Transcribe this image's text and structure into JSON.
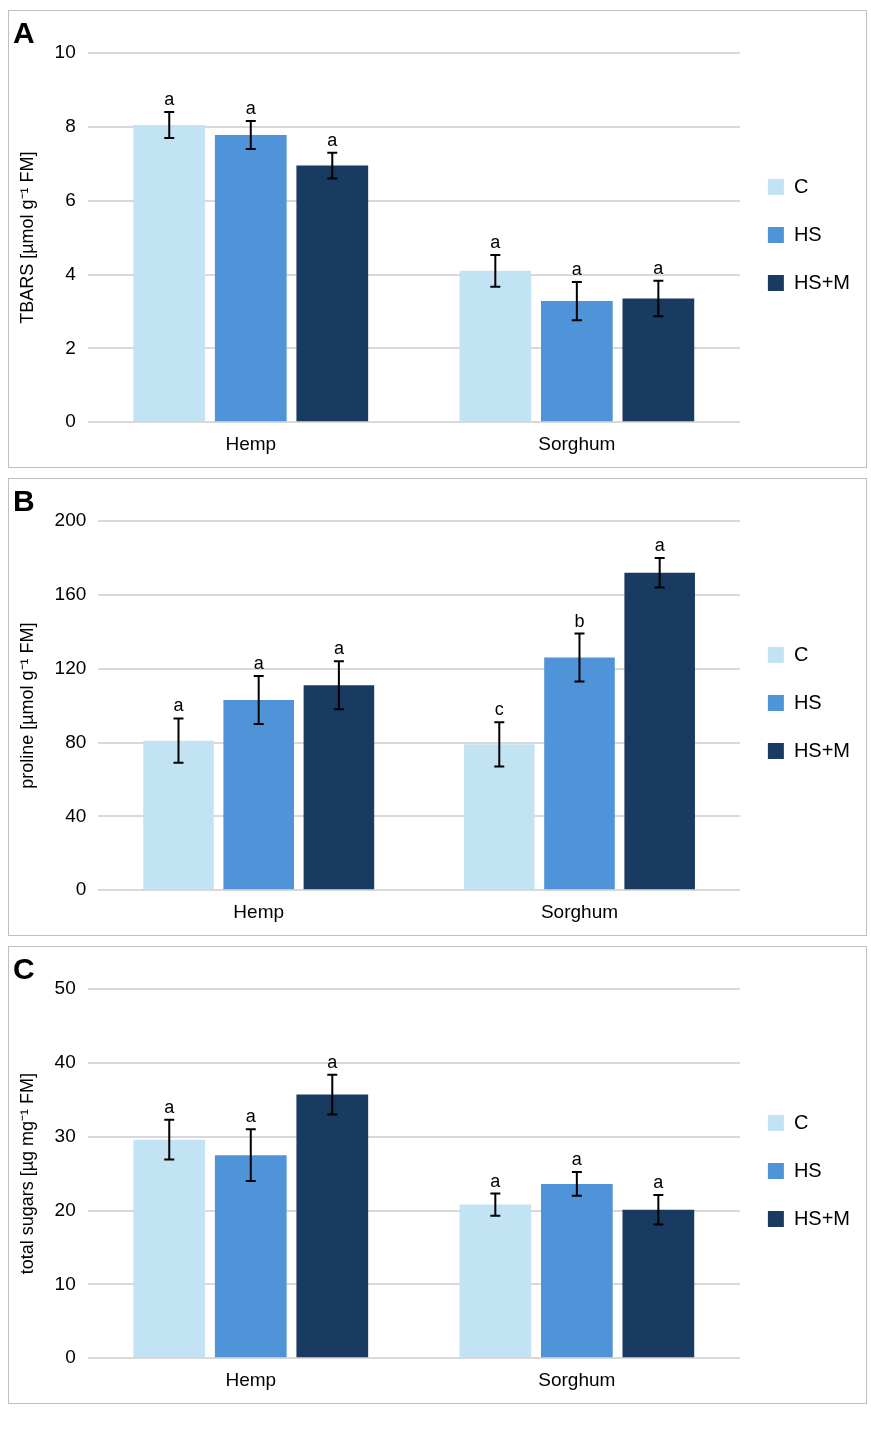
{
  "chart_data": [
    {
      "type": "bar",
      "title": "A",
      "ylabel": "TBARS [µmol g⁻¹ FM]",
      "categories": [
        "Hemp",
        "Sorghum"
      ],
      "ylim": [
        0,
        10
      ],
      "yticks": [
        0,
        2,
        4,
        6,
        8,
        10
      ],
      "grid": "y",
      "legend": "right",
      "series": [
        {
          "name": "C",
          "color": "#c2e3f3",
          "values": [
            8.05,
            4.1
          ],
          "errors": [
            0.35,
            0.43
          ],
          "value_labels": [
            "a",
            "a"
          ]
        },
        {
          "name": "HS",
          "color": "#4f94d8",
          "values": [
            7.78,
            3.28
          ],
          "errors": [
            0.38,
            0.52
          ],
          "value_labels": [
            "a",
            "a"
          ]
        },
        {
          "name": "HS+M",
          "color": "#193b61",
          "values": [
            6.95,
            3.35
          ],
          "errors": [
            0.35,
            0.48
          ],
          "value_labels": [
            "a",
            "a"
          ]
        }
      ]
    },
    {
      "type": "bar",
      "title": "B",
      "ylabel": "proline [µmol g⁻¹ FM]",
      "categories": [
        "Hemp",
        "Sorghum"
      ],
      "ylim": [
        0,
        200
      ],
      "yticks": [
        0,
        40,
        80,
        120,
        160,
        200
      ],
      "grid": "y",
      "legend": "right",
      "series": [
        {
          "name": "C",
          "color": "#c2e3f3",
          "values": [
            81,
            79
          ],
          "errors": [
            12,
            12
          ],
          "value_labels": [
            "a",
            "c"
          ]
        },
        {
          "name": "HS",
          "color": "#4f94d8",
          "values": [
            103,
            126
          ],
          "errors": [
            13,
            13
          ],
          "value_labels": [
            "a",
            "b"
          ]
        },
        {
          "name": "HS+M",
          "color": "#193b61",
          "values": [
            111,
            172
          ],
          "errors": [
            13,
            8
          ],
          "value_labels": [
            "a",
            "a"
          ]
        }
      ]
    },
    {
      "type": "bar",
      "title": "C",
      "ylabel": "total sugars [µg mg⁻¹ FM]",
      "categories": [
        "Hemp",
        "Sorghum"
      ],
      "ylim": [
        0,
        50
      ],
      "yticks": [
        0,
        10,
        20,
        30,
        40,
        50
      ],
      "grid": "y",
      "legend": "right",
      "series": [
        {
          "name": "C",
          "color": "#c2e3f3",
          "values": [
            29.6,
            20.8
          ],
          "errors": [
            2.7,
            1.5
          ],
          "value_labels": [
            "a",
            "a"
          ]
        },
        {
          "name": "HS",
          "color": "#4f94d8",
          "values": [
            27.5,
            23.6
          ],
          "errors": [
            3.5,
            1.6
          ],
          "value_labels": [
            "a",
            "a"
          ]
        },
        {
          "name": "HS+M",
          "color": "#193b61",
          "values": [
            35.7,
            20.1
          ],
          "errors": [
            2.7,
            2.0
          ],
          "value_labels": [
            "a",
            "a"
          ]
        }
      ]
    }
  ]
}
